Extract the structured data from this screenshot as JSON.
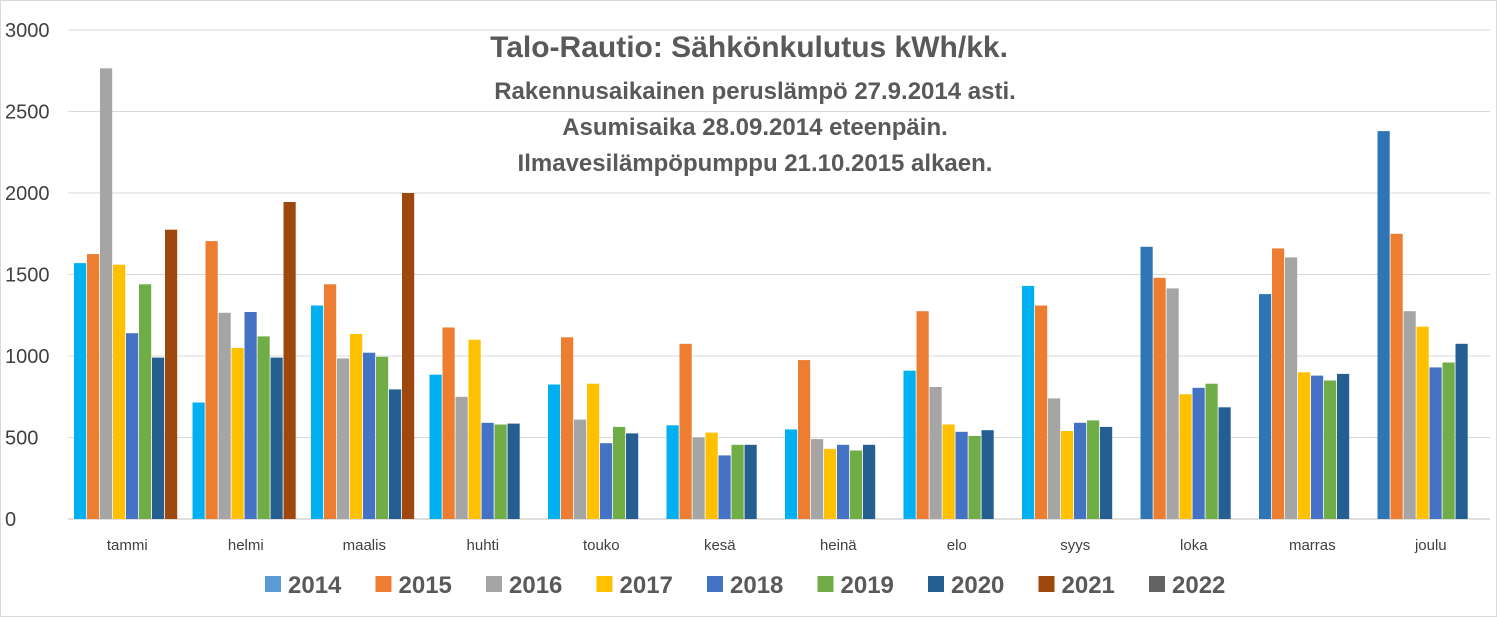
{
  "chart_data": {
    "type": "bar",
    "title": "Talo-Rautio: Sähkönkulutus kWh/kk.",
    "subtitle_lines": [
      "Rakennusaikainen peruslämpö 27.9.2014 asti.",
      "Asumisaika 28.09.2014 eteenpäin.",
      "Ilmavesilämpöpumppu 21.10.2015 alkaen."
    ],
    "categories": [
      "tammi",
      "helmi",
      "maalis",
      "huhti",
      "touko",
      "kesä",
      "heinä",
      "elo",
      "syys",
      "loka",
      "marras",
      "joulu"
    ],
    "ylim": [
      0,
      3000
    ],
    "yticks": [
      0,
      500,
      1000,
      1500,
      2000,
      2500,
      3000
    ],
    "grid": true,
    "legend_position": "bottom",
    "series": [
      {
        "name": "2014",
        "color": "#00B0F0",
        "values": [
          1570,
          715,
          1310,
          885,
          825,
          575,
          550,
          910,
          1430,
          1670,
          1380,
          2380
        ]
      },
      {
        "name": "2015",
        "color": "#ED7D31",
        "values": [
          1625,
          1705,
          1440,
          1175,
          1115,
          1075,
          975,
          1275,
          1310,
          1480,
          1660,
          1750
        ]
      },
      {
        "name": "2016",
        "color": "#A5A5A5",
        "values": [
          2765,
          1265,
          985,
          750,
          610,
          500,
          490,
          810,
          740,
          1415,
          1605,
          1275
        ]
      },
      {
        "name": "2017",
        "color": "#FFC000",
        "values": [
          1560,
          1050,
          1135,
          1100,
          830,
          530,
          430,
          580,
          540,
          765,
          900,
          1180
        ]
      },
      {
        "name": "2018",
        "color": "#4472C4",
        "values": [
          1140,
          1270,
          1020,
          590,
          465,
          390,
          455,
          535,
          590,
          805,
          880,
          930
        ]
      },
      {
        "name": "2019",
        "color": "#70AD47",
        "values": [
          1440,
          1120,
          995,
          580,
          565,
          455,
          420,
          510,
          605,
          830,
          850,
          960
        ]
      },
      {
        "name": "2020",
        "color": "#255E91",
        "values": [
          990,
          990,
          795,
          585,
          525,
          455,
          455,
          545,
          565,
          685,
          890,
          1075
        ]
      },
      {
        "name": "2021",
        "color": "#9E480E",
        "values": [
          1775,
          1945,
          2000,
          null,
          null,
          null,
          null,
          null,
          null,
          null,
          null,
          null
        ]
      },
      {
        "name": "2022",
        "color": "#636363",
        "values": [
          null,
          null,
          null,
          null,
          null,
          null,
          null,
          null,
          null,
          null,
          null,
          null
        ]
      }
    ],
    "legend_colors": [
      "#5B9BD5",
      "#ED7D31",
      "#A5A5A5",
      "#FFC000",
      "#4472C4",
      "#70AD47",
      "#255E91",
      "#9E480E",
      "#636363"
    ],
    "special_bar_colors": {
      "loka_2014": "#2E75B6",
      "joulu_2014": "#2E75B6",
      "marras_2014": "#2E75B6"
    }
  },
  "colors": {
    "grid": "#D9D9D9",
    "axis": "#BFBFBF",
    "text": "#404040",
    "title": "#595959"
  }
}
